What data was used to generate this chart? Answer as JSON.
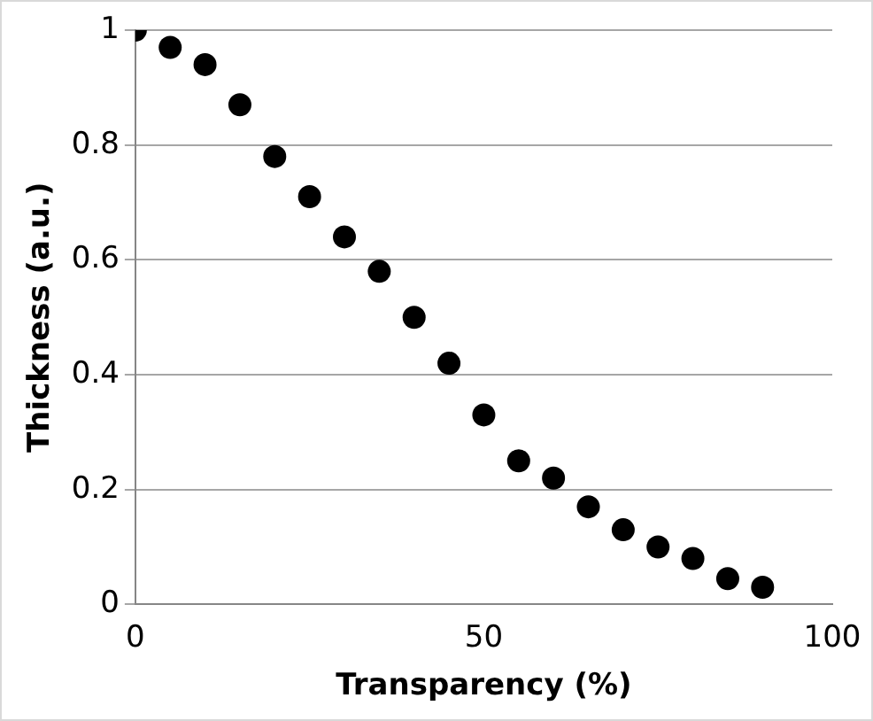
{
  "chart_data": {
    "type": "scatter",
    "xlabel": "Transparency (%)",
    "ylabel": "Thickness (a.u.)",
    "x": [
      0,
      5,
      10,
      15,
      20,
      25,
      30,
      35,
      40,
      45,
      50,
      55,
      60,
      65,
      70,
      75,
      80,
      85,
      90
    ],
    "series": [
      {
        "color": "#000000",
        "values": [
          1.0,
          0.97,
          0.94,
          0.87,
          0.78,
          0.71,
          0.64,
          0.58,
          0.5,
          0.42,
          0.33,
          0.25,
          0.22,
          0.17,
          0.13,
          0.1,
          0.08,
          0.045,
          0.03
        ]
      }
    ],
    "xlim": [
      0,
      100
    ],
    "xticks": [
      0,
      50,
      100
    ],
    "ylim": [
      0,
      1
    ],
    "yticks": [
      0,
      0.2,
      0.4,
      0.6,
      0.8,
      1
    ],
    "grid": "y",
    "marker": "circle",
    "legend": false
  }
}
